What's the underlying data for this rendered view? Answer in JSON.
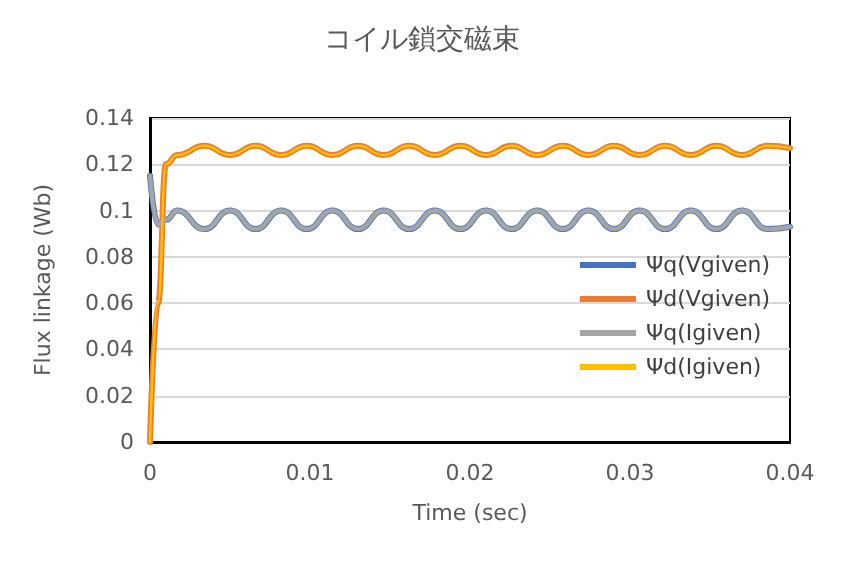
{
  "chart_data": {
    "type": "line",
    "title": "コイル鎖交磁束",
    "xlabel": "Time (sec)",
    "ylabel": "Flux linkage (Wb)",
    "x": [
      0,
      0.0005,
      0.001,
      0.0017,
      0.0034,
      0.005,
      0.0066,
      0.0082,
      0.0098,
      0.0114,
      0.013,
      0.0146,
      0.0162,
      0.0178,
      0.0194,
      0.021,
      0.0226,
      0.0242,
      0.0258,
      0.0274,
      0.029,
      0.0306,
      0.0322,
      0.0338,
      0.0354,
      0.037,
      0.0386,
      0.04
    ],
    "series": [
      {
        "name": "Ψq(Vgiven)",
        "color": "#4472c4",
        "values": [
          0.115,
          0.094,
          0.096,
          0.1,
          0.092,
          0.1,
          0.092,
          0.1,
          0.092,
          0.1,
          0.092,
          0.1,
          0.092,
          0.1,
          0.092,
          0.1,
          0.092,
          0.1,
          0.092,
          0.1,
          0.092,
          0.1,
          0.092,
          0.1,
          0.092,
          0.1,
          0.092,
          0.093
        ]
      },
      {
        "name": "Ψd(Vgiven)",
        "color": "#ed7d31",
        "values": [
          0,
          0.06,
          0.12,
          0.124,
          0.128,
          0.124,
          0.128,
          0.124,
          0.128,
          0.124,
          0.128,
          0.124,
          0.128,
          0.124,
          0.128,
          0.124,
          0.128,
          0.124,
          0.128,
          0.124,
          0.128,
          0.124,
          0.128,
          0.124,
          0.128,
          0.124,
          0.128,
          0.127
        ]
      },
      {
        "name": "Ψq(Igiven)",
        "color": "#a5a5a5",
        "values": [
          0.115,
          0.094,
          0.096,
          0.1,
          0.092,
          0.1,
          0.092,
          0.1,
          0.092,
          0.1,
          0.092,
          0.1,
          0.092,
          0.1,
          0.092,
          0.1,
          0.092,
          0.1,
          0.092,
          0.1,
          0.092,
          0.1,
          0.092,
          0.1,
          0.092,
          0.1,
          0.092,
          0.093
        ]
      },
      {
        "name": "Ψd(Igiven)",
        "color": "#ffc000",
        "values": [
          0,
          0.06,
          0.12,
          0.124,
          0.128,
          0.124,
          0.128,
          0.124,
          0.128,
          0.124,
          0.128,
          0.124,
          0.128,
          0.124,
          0.128,
          0.124,
          0.128,
          0.124,
          0.128,
          0.124,
          0.128,
          0.124,
          0.128,
          0.124,
          0.128,
          0.124,
          0.128,
          0.127
        ]
      }
    ],
    "xlim": [
      0,
      0.04
    ],
    "xticks": [
      0,
      0.01,
      0.02,
      0.03,
      0.04
    ],
    "ylim": [
      0,
      0.14
    ],
    "yticks": [
      0,
      0.02,
      0.04,
      0.06,
      0.08,
      0.1,
      0.12,
      0.14
    ],
    "grid": "y",
    "legend": "right",
    "marker": "none",
    "line_style": "solid"
  }
}
